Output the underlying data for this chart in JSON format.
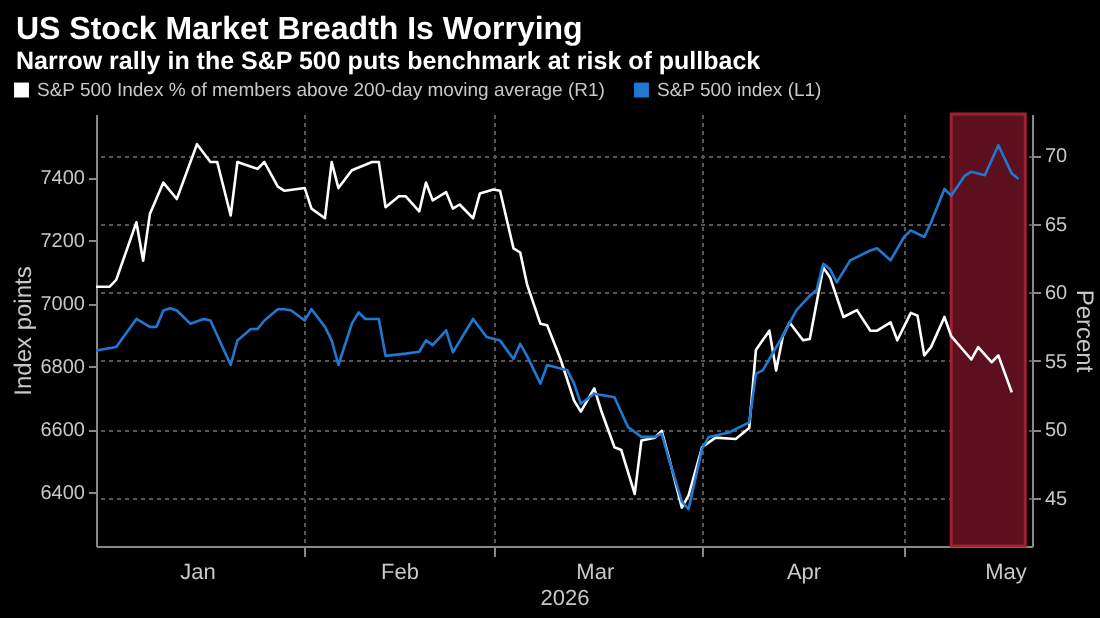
{
  "chart_data": {
    "type": "line",
    "title": "US Stock Market Breadth Is Worrying",
    "subtitle": "Narrow rally in the S&P 500 puts benchmark at risk of pullback",
    "xlabel": "2026",
    "ylabel": "Index points",
    "y2label": "Percent",
    "xlim": [
      "2026-01-01",
      "2026-05-20"
    ],
    "xticks": [
      {
        "value": "2026-01-16",
        "label": "Jan"
      },
      {
        "value": "2026-02-01",
        "label": null
      },
      {
        "value": "2026-02-15",
        "label": "Feb"
      },
      {
        "value": "2026-03-01",
        "label": null
      },
      {
        "value": "2026-03-16",
        "label": "Mar"
      },
      {
        "value": "2026-04-01",
        "label": null
      },
      {
        "value": "2026-04-16",
        "label": "Apr"
      },
      {
        "value": "2026-05-01",
        "label": null
      },
      {
        "value": "2026-05-16",
        "label": "May"
      }
    ],
    "ylim": [
      6230,
      7600
    ],
    "yticks": [
      6400,
      6600,
      6800,
      7000,
      7200,
      7400
    ],
    "y2lim": [
      41.5,
      73
    ],
    "y2ticks": [
      45,
      50,
      55,
      60,
      65,
      70
    ],
    "grid": true,
    "legend": "top",
    "bands": [
      {
        "axis": "x",
        "from": "2026-05-08",
        "to": "2026-05-19",
        "color": "#5c0f1c"
      }
    ],
    "series": [
      {
        "name": "S&P 500 Index % of members above 200-day moving average (R1)",
        "color": "#ffffff",
        "axis": "y2",
        "x": [
          "2026-01-01",
          "2026-01-03",
          "2026-01-04",
          "2026-01-05",
          "2026-01-07",
          "2026-01-08",
          "2026-01-09",
          "2026-01-11",
          "2026-01-13",
          "2026-01-16",
          "2026-01-18",
          "2026-01-19",
          "2026-01-21",
          "2026-01-22",
          "2026-01-25",
          "2026-01-26",
          "2026-01-28",
          "2026-01-29",
          "2026-02-01",
          "2026-02-02",
          "2026-02-04",
          "2026-02-05",
          "2026-02-06",
          "2026-02-08",
          "2026-02-09",
          "2026-02-11",
          "2026-02-12",
          "2026-02-13",
          "2026-02-15",
          "2026-02-16",
          "2026-02-18",
          "2026-02-19",
          "2026-02-20",
          "2026-02-22",
          "2026-02-23",
          "2026-02-24",
          "2026-02-26",
          "2026-02-27",
          "2026-03-01",
          "2026-03-02",
          "2026-03-04",
          "2026-03-05",
          "2026-03-06",
          "2026-03-08",
          "2026-03-09",
          "2026-03-11",
          "2026-03-13",
          "2026-03-14",
          "2026-03-16",
          "2026-03-17",
          "2026-03-19",
          "2026-03-20",
          "2026-03-22",
          "2026-03-23",
          "2026-03-25",
          "2026-03-26",
          "2026-03-27",
          "2026-03-29",
          "2026-03-30",
          "2026-04-01",
          "2026-04-03",
          "2026-04-06",
          "2026-04-08",
          "2026-04-09",
          "2026-04-11",
          "2026-04-12",
          "2026-04-13",
          "2026-04-14",
          "2026-04-16",
          "2026-04-17",
          "2026-04-19",
          "2026-04-20",
          "2026-04-22",
          "2026-04-24",
          "2026-04-26",
          "2026-04-27",
          "2026-04-29",
          "2026-04-30",
          "2026-05-02",
          "2026-05-03",
          "2026-05-04",
          "2026-05-05",
          "2026-05-07",
          "2026-05-08",
          "2026-05-11",
          "2026-05-12",
          "2026-05-14",
          "2026-05-15",
          "2026-05-17"
        ],
        "values": [
          60.4,
          60.4,
          60.9,
          62.3,
          65.1,
          62.3,
          65.7,
          68.0,
          66.8,
          70.8,
          69.5,
          69.5,
          65.6,
          69.5,
          69.0,
          69.5,
          67.7,
          67.4,
          67.6,
          66.1,
          65.4,
          69.5,
          67.6,
          68.9,
          69.1,
          69.5,
          69.5,
          66.2,
          67.0,
          67.0,
          65.9,
          68.0,
          66.7,
          67.3,
          66.1,
          66.4,
          65.4,
          67.2,
          67.5,
          67.4,
          63.2,
          62.9,
          60.6,
          57.7,
          57.6,
          55.1,
          52.1,
          51.3,
          53.0,
          51.4,
          48.7,
          48.5,
          45.3,
          49.2,
          49.4,
          49.9,
          48.1,
          44.3,
          45.2,
          48.7,
          49.4,
          49.3,
          50.1,
          55.8,
          57.2,
          54.3,
          56.8,
          57.8,
          56.5,
          56.6,
          61.8,
          61.1,
          58.2,
          58.7,
          57.2,
          57.2,
          57.8,
          56.5,
          58.5,
          58.3,
          55.4,
          56.0,
          58.2,
          56.8,
          55.1,
          56.0,
          54.9,
          55.4,
          52.7
        ]
      },
      {
        "name": "S&P 500 index (L1)",
        "color": "#1f78d1",
        "axis": "y",
        "x": [
          "2026-01-01",
          "2026-01-04",
          "2026-01-07",
          "2026-01-09",
          "2026-01-10",
          "2026-01-11",
          "2026-01-12",
          "2026-01-13",
          "2026-01-15",
          "2026-01-17",
          "2026-01-18",
          "2026-01-21",
          "2026-01-22",
          "2026-01-24",
          "2026-01-25",
          "2026-01-26",
          "2026-01-28",
          "2026-01-29",
          "2026-01-30",
          "2026-02-01",
          "2026-02-02",
          "2026-02-04",
          "2026-02-05",
          "2026-02-06",
          "2026-02-08",
          "2026-02-09",
          "2026-02-10",
          "2026-02-12",
          "2026-02-13",
          "2026-02-16",
          "2026-02-18",
          "2026-02-19",
          "2026-02-20",
          "2026-02-22",
          "2026-02-23",
          "2026-02-26",
          "2026-02-28",
          "2026-03-02",
          "2026-03-04",
          "2026-03-05",
          "2026-03-06",
          "2026-03-08",
          "2026-03-09",
          "2026-03-12",
          "2026-03-13",
          "2026-03-14",
          "2026-03-16",
          "2026-03-19",
          "2026-03-21",
          "2026-03-23",
          "2026-03-25",
          "2026-03-26",
          "2026-03-27",
          "2026-03-29",
          "2026-03-30",
          "2026-04-01",
          "2026-04-02",
          "2026-04-05",
          "2026-04-08",
          "2026-04-09",
          "2026-04-10",
          "2026-04-11",
          "2026-04-13",
          "2026-04-15",
          "2026-04-17",
          "2026-04-18",
          "2026-04-19",
          "2026-04-20",
          "2026-04-21",
          "2026-04-23",
          "2026-04-26",
          "2026-04-27",
          "2026-04-29",
          "2026-05-01",
          "2026-05-02",
          "2026-05-04",
          "2026-05-05",
          "2026-05-07",
          "2026-05-08",
          "2026-05-10",
          "2026-05-11",
          "2026-05-13",
          "2026-05-15",
          "2026-05-17",
          "2026-05-18"
        ],
        "values": [
          6850,
          6861,
          6950,
          6925,
          6925,
          6977,
          6984,
          6977,
          6935,
          6950,
          6945,
          6804,
          6882,
          6918,
          6918,
          6945,
          6981,
          6981,
          6977,
          6945,
          6981,
          6925,
          6882,
          6804,
          6935,
          6971,
          6950,
          6950,
          6833,
          6840,
          6846,
          6882,
          6867,
          6914,
          6844,
          6950,
          6893,
          6882,
          6823,
          6871,
          6833,
          6745,
          6804,
          6787,
          6745,
          6681,
          6713,
          6702,
          6607,
          6576,
          6576,
          6586,
          6512,
          6371,
          6347,
          6538,
          6576,
          6590,
          6622,
          6776,
          6787,
          6823,
          6897,
          6977,
          7024,
          7041,
          7125,
          7108,
          7066,
          7136,
          7167,
          7174,
          7136,
          7210,
          7231,
          7210,
          7256,
          7362,
          7341,
          7404,
          7417,
          7406,
          7501,
          7411,
          7394
        ]
      }
    ]
  }
}
